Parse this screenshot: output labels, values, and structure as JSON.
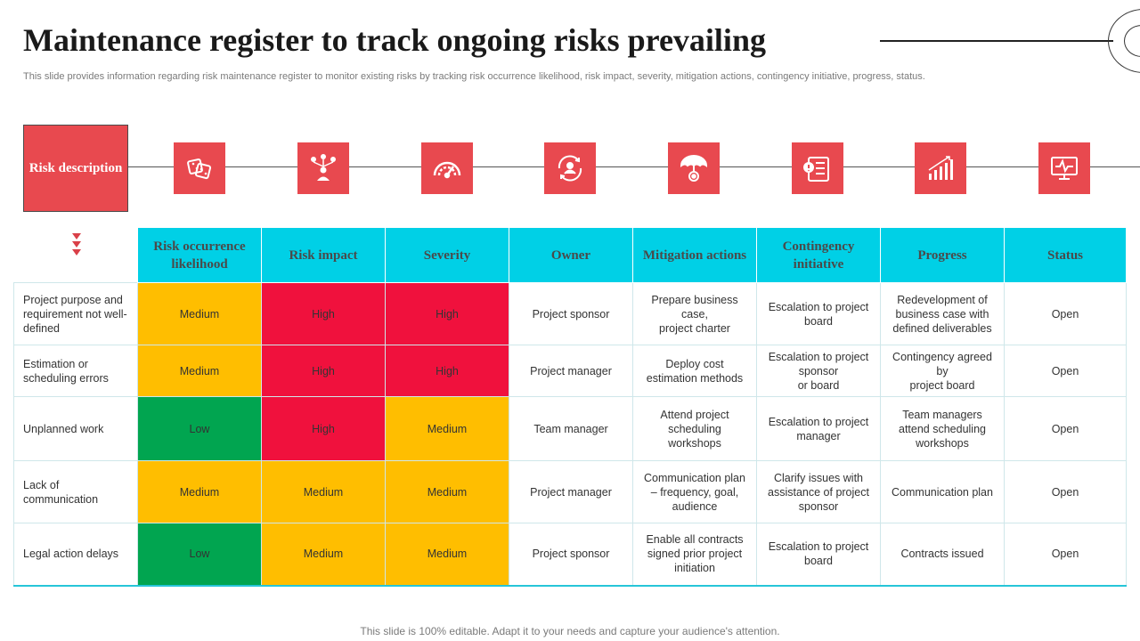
{
  "title": "Maintenance register to track ongoing risks prevailing",
  "subtitle": "This slide provides information regarding risk maintenance register to monitor existing risks by tracking risk occurrence likelihood, risk impact, severity, mitigation actions, contingency initiative, progress, status.",
  "risk_box_label": "Risk description",
  "icons": [
    "dice-icon",
    "org-chart-icon",
    "gauge-icon",
    "person-cycle-icon",
    "umbrella-icon",
    "checklist-icon",
    "bar-chart-icon",
    "monitor-pulse-icon"
  ],
  "columns": [
    "Risk occurrence likelihood",
    "Risk impact",
    "Severity",
    "Owner",
    "Mitigation actions",
    "Contingency initiative",
    "Progress",
    "Status"
  ],
  "level_colors": {
    "High": "#f0113d",
    "Medium": "#ffbe00",
    "Low": "#01a550"
  },
  "rows": [
    {
      "description": "Project purpose and requirement not well-defined",
      "likelihood": "Medium",
      "impact": "High",
      "severity": "High",
      "owner": "Project sponsor",
      "mitigation": "Prepare business case,\nproject charter",
      "contingency": "Escalation to project board",
      "progress": "Redevelopment of business case with defined deliverables",
      "status": "Open"
    },
    {
      "description": "Estimation or scheduling errors",
      "likelihood": "Medium",
      "impact": "High",
      "severity": "High",
      "owner": "Project manager",
      "mitigation": "Deploy cost estimation methods",
      "contingency": "Escalation to project sponsor\nor board",
      "progress": "Contingency agreed by\nproject board",
      "status": "Open"
    },
    {
      "description": "Unplanned work",
      "likelihood": "Low",
      "impact": "High",
      "severity": "Medium",
      "owner": "Team manager",
      "mitigation": "Attend project scheduling workshops",
      "contingency": "Escalation to project manager",
      "progress": "Team managers attend scheduling workshops",
      "status": "Open"
    },
    {
      "description": "Lack of communication",
      "likelihood": "Medium",
      "impact": "Medium",
      "severity": "Medium",
      "owner": "Project manager",
      "mitigation": "Communication plan – frequency, goal, audience",
      "contingency": "Clarify issues with assistance of project sponsor",
      "progress": "Communication plan",
      "status": "Open"
    },
    {
      "description": "Legal action delays",
      "likelihood": "Low",
      "impact": "Medium",
      "severity": "Medium",
      "owner": "Project sponsor",
      "mitigation": "Enable all contracts signed prior project initiation",
      "contingency": "Escalation to project board",
      "progress": "Contracts issued",
      "status": "Open"
    }
  ],
  "footer": "This slide is 100% editable. Adapt it to your needs and capture your audience's attention."
}
